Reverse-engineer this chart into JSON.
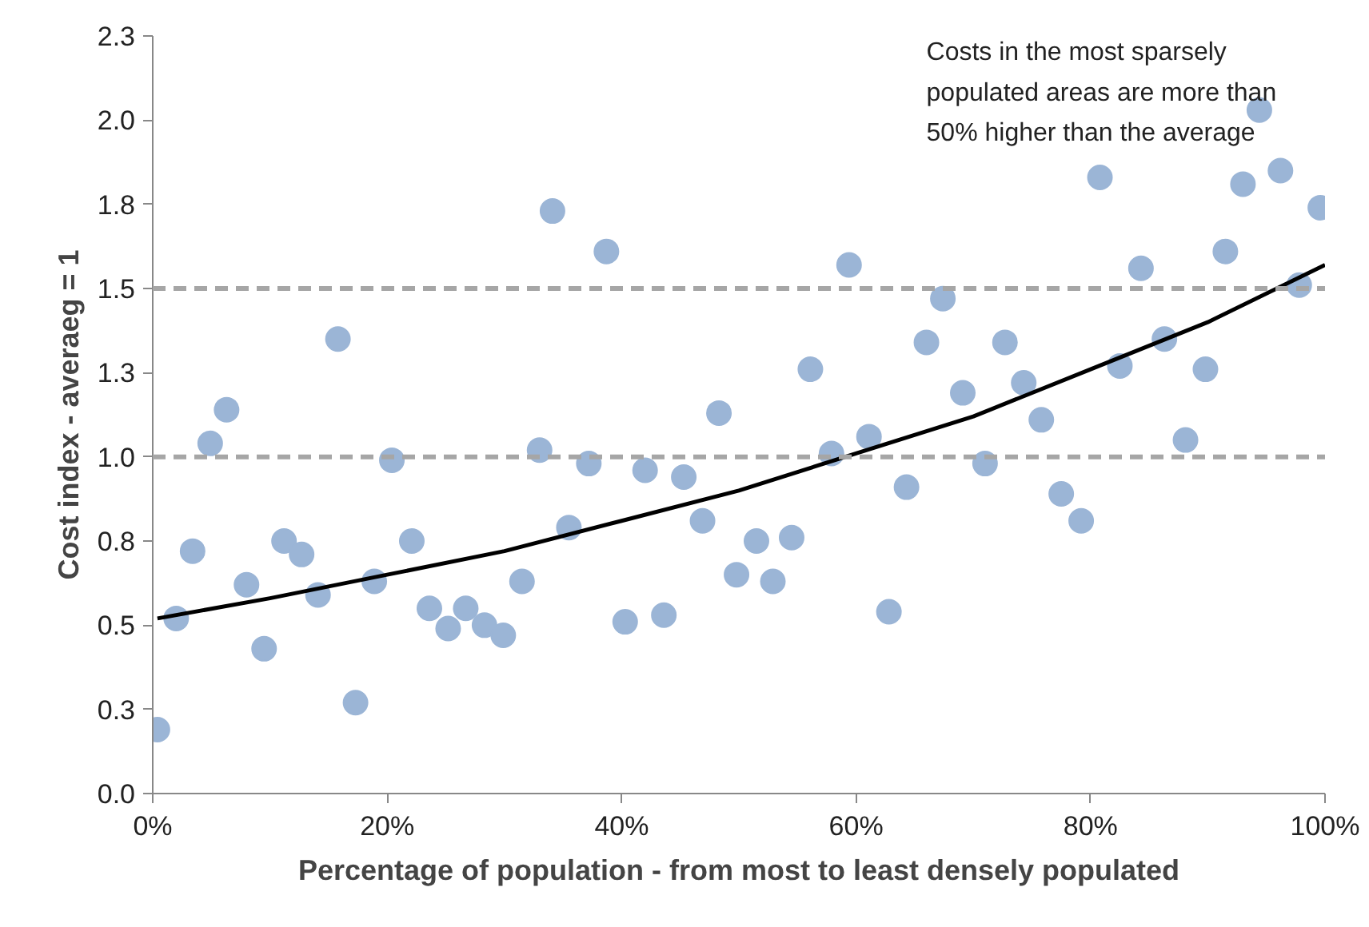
{
  "chart_data": {
    "type": "scatter",
    "xlabel": "Percentage of population - from most to least densely populated",
    "ylabel": "Cost index - averaeg = 1",
    "annotations": [
      "Costs in the most sparsely populated areas are more than 50% higher than the average"
    ],
    "xlim": [
      0,
      100
    ],
    "xticks": [
      {
        "value": 0,
        "label": "0%"
      },
      {
        "value": 20,
        "label": "20%"
      },
      {
        "value": 40,
        "label": "40%"
      },
      {
        "value": 60,
        "label": "60%"
      },
      {
        "value": 80,
        "label": "80%"
      },
      {
        "value": 100,
        "label": "100%"
      }
    ],
    "ylim": [
      0,
      2.25
    ],
    "yticks": [
      {
        "value": 0,
        "label": "0.0"
      },
      {
        "value": 0.25,
        "label": "0.3"
      },
      {
        "value": 0.5,
        "label": "0.5"
      },
      {
        "value": 0.75,
        "label": "0.8"
      },
      {
        "value": 1.0,
        "label": "1.0"
      },
      {
        "value": 1.25,
        "label": "1.3"
      },
      {
        "value": 1.5,
        "label": "1.5"
      },
      {
        "value": 1.75,
        "label": "1.8"
      },
      {
        "value": 2.0,
        "label": "2.0"
      },
      {
        "value": 2.25,
        "label": "2.3"
      }
    ],
    "grid": false,
    "ref_lines": [
      {
        "axis": "y",
        "value": 1.0,
        "color": "#a6a6a6",
        "line_style": "dashed"
      },
      {
        "axis": "y",
        "value": 1.5,
        "color": "#a6a6a6",
        "line_style": "dashed"
      }
    ],
    "series": [
      {
        "type": "scatter",
        "color": "#9bb5d6",
        "marker": "circle",
        "x": [
          0.4,
          2.0,
          3.4,
          4.9,
          6.3,
          8.0,
          9.5,
          11.2,
          12.7,
          14.1,
          15.8,
          17.3,
          18.9,
          20.4,
          22.1,
          23.6,
          25.2,
          26.7,
          28.3,
          29.9,
          31.5,
          33.0,
          34.1,
          35.5,
          37.2,
          38.7,
          40.3,
          42.0,
          43.6,
          45.3,
          46.9,
          48.3,
          49.8,
          51.5,
          52.9,
          54.5,
          56.1,
          57.9,
          59.4,
          61.1,
          62.8,
          64.3,
          66.0,
          67.4,
          69.1,
          71.0,
          72.7,
          74.3,
          75.8,
          77.5,
          79.2,
          80.8,
          82.5,
          84.3,
          86.3,
          88.1,
          89.8,
          91.5,
          93.0,
          94.4,
          96.2,
          97.8,
          99.6
        ],
        "values": [
          0.19,
          0.52,
          0.72,
          1.04,
          1.14,
          0.62,
          0.43,
          0.75,
          0.71,
          0.59,
          1.35,
          0.27,
          0.63,
          0.99,
          0.75,
          0.55,
          0.49,
          0.55,
          0.5,
          0.47,
          0.63,
          1.02,
          1.73,
          0.79,
          0.98,
          1.61,
          0.51,
          0.96,
          0.53,
          0.94,
          0.81,
          1.13,
          0.65,
          0.75,
          0.63,
          0.76,
          1.26,
          1.01,
          1.57,
          1.06,
          0.54,
          0.91,
          1.34,
          1.47,
          1.19,
          0.98,
          1.34,
          1.22,
          1.11,
          0.89,
          0.81,
          1.83,
          1.27,
          1.56,
          1.35,
          1.05,
          1.26,
          1.61,
          1.81,
          2.03,
          1.85,
          1.51,
          1.74
        ]
      },
      {
        "type": "line",
        "color": "#000000",
        "line_style": "solid",
        "x": [
          0.4,
          10,
          20,
          30,
          40,
          50,
          60,
          70,
          80,
          90,
          100
        ],
        "values": [
          0.52,
          0.58,
          0.65,
          0.72,
          0.81,
          0.9,
          1.01,
          1.12,
          1.26,
          1.4,
          1.57
        ]
      }
    ]
  }
}
